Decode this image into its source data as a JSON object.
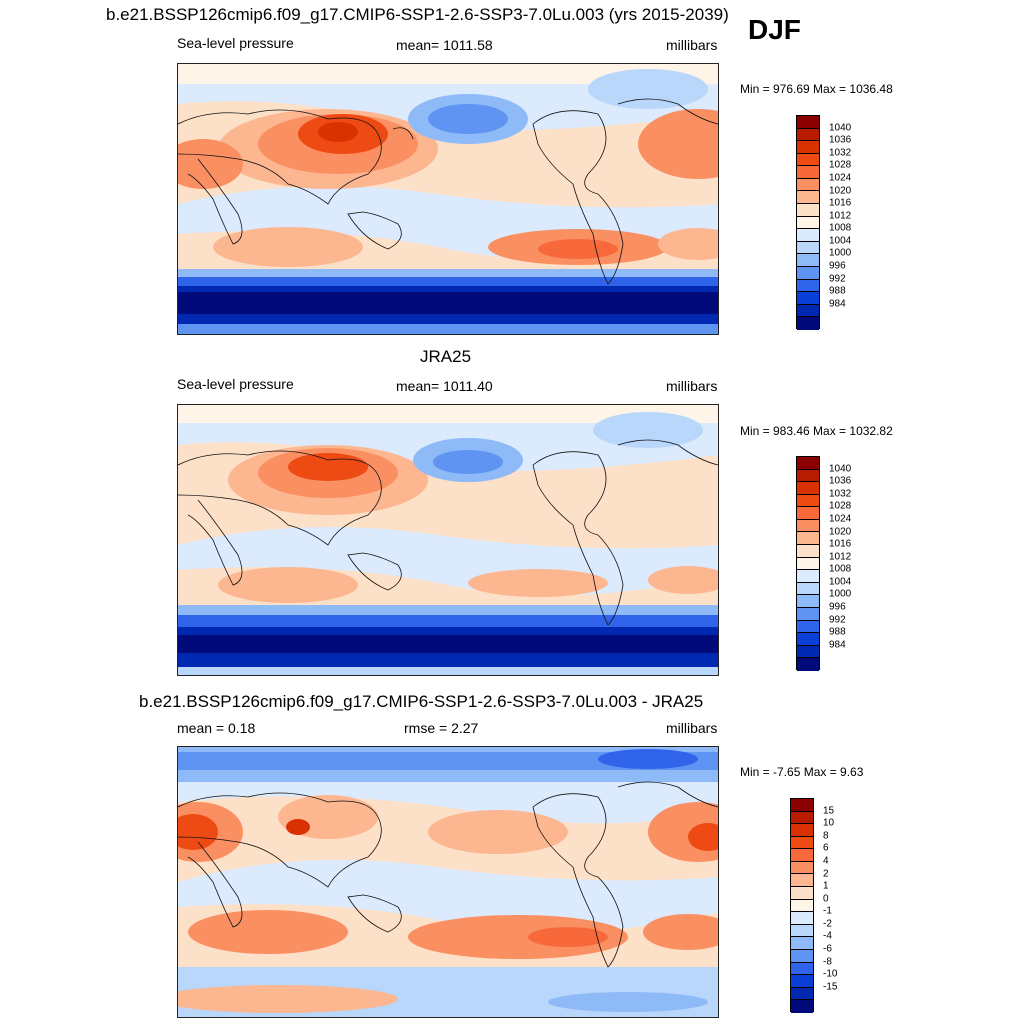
{
  "header": {
    "title": "b.e21.BSSP126cmip6.f09_g17.CMIP6-SSP1-2.6-SSP3-7.0Lu.003 (yrs 2015-2039)",
    "season": "DJF"
  },
  "panels": [
    {
      "id": "model",
      "title": "",
      "left_label": "Sea-level pressure",
      "center_label": "mean= 1011.58",
      "right_label": "millibars",
      "minmax": "Min = 976.69 Max = 1036.48",
      "palette": "slp"
    },
    {
      "id": "obs",
      "title": "JRA25",
      "left_label": "Sea-level pressure",
      "center_label": "mean= 1011.40",
      "right_label": "millibars",
      "minmax": "Min = 983.46 Max = 1032.82",
      "palette": "slp"
    },
    {
      "id": "diff",
      "title": "b.e21.BSSP126cmip6.f09_g17.CMIP6-SSP1-2.6-SSP3-7.0Lu.003 - JRA25",
      "left_label": "mean =   0.18",
      "center_label": "rmse =   2.27",
      "right_label": "millibars",
      "minmax": "Min =  -7.65 Max =   9.63",
      "palette": "diff"
    }
  ],
  "colorbars": {
    "slp": {
      "labels": [
        "1040",
        "1036",
        "1032",
        "1028",
        "1024",
        "1020",
        "1016",
        "1012",
        "1008",
        "1004",
        "1000",
        "996",
        "992",
        "988",
        "984"
      ],
      "colors": [
        "#8b0000",
        "#b71c00",
        "#d93200",
        "#ee4a14",
        "#f7693a",
        "#fa8f62",
        "#fcb690",
        "#fde0c8",
        "#fef4e8",
        "#dbeafc",
        "#b9d6fb",
        "#8fbaf8",
        "#5f94f2",
        "#2f64ea",
        "#0a3fd8",
        "#0028b0",
        "#000a7a"
      ]
    },
    "diff": {
      "labels": [
        "15",
        "10",
        "8",
        "6",
        "4",
        "2",
        "1",
        "0",
        "-1",
        "-2",
        "-4",
        "-6",
        "-8",
        "-10",
        "-15"
      ],
      "colors": [
        "#8b0000",
        "#b71c00",
        "#d93200",
        "#ee4a14",
        "#f7693a",
        "#fa8f62",
        "#fcb690",
        "#fde0c8",
        "#fef4e8",
        "#dbeafc",
        "#b9d6fb",
        "#8fbaf8",
        "#5f94f2",
        "#2f64ea",
        "#0a3fd8",
        "#0028b0",
        "#000a7a"
      ]
    }
  }
}
